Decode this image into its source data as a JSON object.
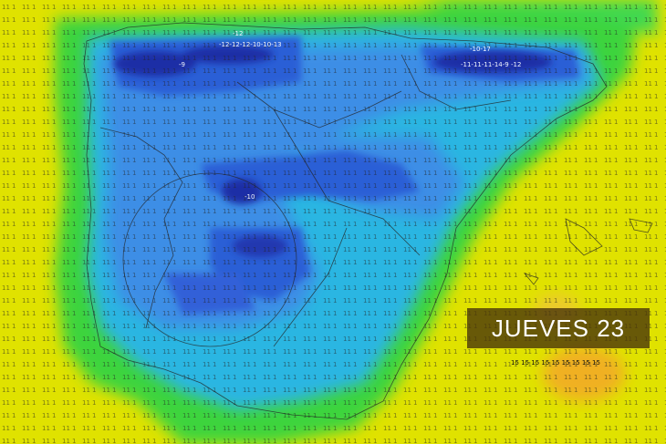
{
  "overlay": {
    "date_label": "JUEVES 23"
  },
  "grid_values": {
    "cold_extreme": "-12-12-12-10-10-13",
    "cold_a": "-12",
    "cold_b": "-9",
    "cold_c": "-10-17",
    "cold_d": "-11-11-11-14-9",
    "cold_e": "-12",
    "cold_f": "-10",
    "warm_row": "15 15 15 15 15 15 15 15 15"
  },
  "colors": {
    "ocean_yellow": "#e6e600",
    "green": "#3ad63a",
    "cyan": "#2ab8e6",
    "blue_light": "#3c8ee6",
    "blue": "#2c5ed6",
    "blue_dark": "#1c2ea6",
    "orange": "#f0b020"
  }
}
